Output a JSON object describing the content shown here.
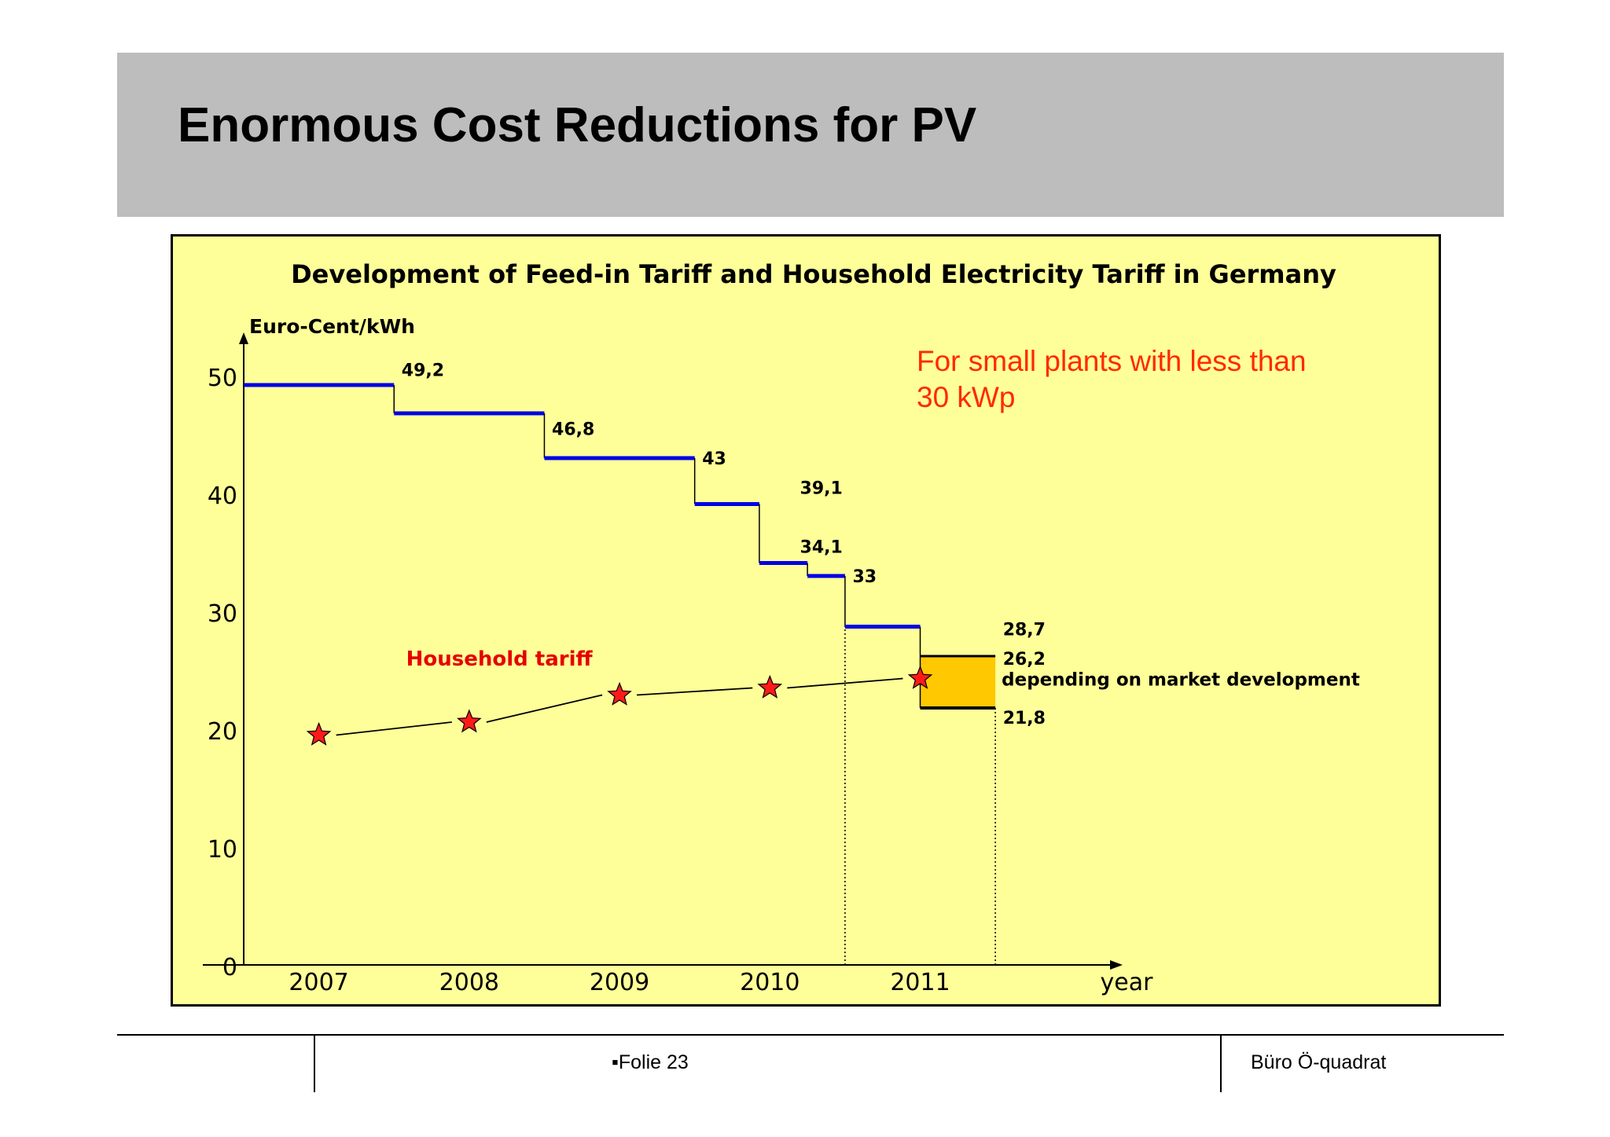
{
  "slide": {
    "title": "Enormous Cost Reductions for PV"
  },
  "footer": {
    "slide_number": "▪Folie 23",
    "organization": "Büro Ö-quadrat"
  },
  "chart_data": {
    "type": "line",
    "title": "Development of Feed-in Tariff and Household Electricity Tariff in Germany",
    "ylabel": "Euro-Cent/kWh",
    "xlabel": "year",
    "ylim": [
      0,
      50
    ],
    "yticks": [
      0,
      10,
      20,
      30,
      40,
      50
    ],
    "xlim": [
      2006.5,
      2012.2
    ],
    "xticks": [
      2007,
      2008,
      2009,
      2010,
      2011
    ],
    "note": "For small plants with less than 30 kWp",
    "colors": {
      "feed_in": "#0000e6",
      "household": "#000000",
      "star": "#ff1a1a",
      "range_fill": "#ffc800",
      "note": "#ff2a00",
      "household_label": "#e60000"
    },
    "series": [
      {
        "name": "",
        "kind": "step",
        "x": [
          2006.5,
          2007.5,
          2007.5,
          2008.5,
          2008.5,
          2009.5,
          2009.5,
          2009.93,
          2009.93,
          2010.25,
          2010.25,
          2010.5,
          2010.5,
          2011.0
        ],
        "y": [
          49.2,
          49.2,
          46.8,
          46.8,
          43,
          43,
          39.1,
          39.1,
          34.1,
          34.1,
          33,
          33,
          28.7,
          28.7
        ]
      },
      {
        "name": "Household tariff",
        "kind": "line-star",
        "x": [
          2007,
          2008,
          2009,
          2010,
          2011
        ],
        "y": [
          19.5,
          20.6,
          22.9,
          23.5,
          24.3
        ]
      }
    ],
    "range_2011": {
      "x": [
        2011.0,
        2011.5
      ],
      "upper": 26.2,
      "lower": 21.8,
      "label": "depending on market development"
    },
    "data_labels": [
      {
        "text": "49,2",
        "x": 2007.55,
        "y": 50.5
      },
      {
        "text": "46,8",
        "x": 2008.55,
        "y": 45.5
      },
      {
        "text": "43",
        "x": 2009.55,
        "y": 43.0
      },
      {
        "text": "39,1",
        "x": 2010.2,
        "y": 40.5
      },
      {
        "text": "34,1",
        "x": 2010.2,
        "y": 35.5
      },
      {
        "text": "33",
        "x": 2010.55,
        "y": 33.0
      },
      {
        "text": "28,7",
        "x": 2011.55,
        "y": 28.5
      },
      {
        "text": "26,2",
        "x": 2011.55,
        "y": 26.0
      },
      {
        "text": "21,8",
        "x": 2011.55,
        "y": 21.0
      }
    ]
  }
}
